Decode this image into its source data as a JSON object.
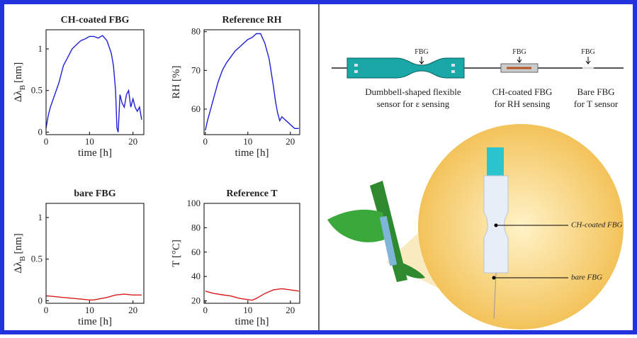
{
  "chart_data": [
    {
      "type": "line",
      "title": "CH-coated FBG",
      "x_label": "time [h]",
      "y_label": "Δλ",
      "y_label_sub": "B",
      "y_label_unit": "[nm]",
      "color": "#1f1fd6",
      "x": [
        0,
        0.5,
        1,
        2,
        3,
        4,
        5,
        6,
        7,
        8,
        9,
        10,
        11,
        12,
        13,
        14,
        15,
        15.5,
        16,
        16.3,
        16.6,
        17,
        17.5,
        18,
        18.5,
        19,
        19.5,
        20,
        20.5,
        21,
        21.5,
        22
      ],
      "values": [
        0.05,
        0.2,
        0.3,
        0.45,
        0.6,
        0.8,
        0.9,
        1.0,
        1.05,
        1.1,
        1.12,
        1.15,
        1.15,
        1.13,
        1.16,
        1.1,
        0.95,
        0.8,
        0.5,
        0.05,
        0.0,
        0.45,
        0.35,
        0.3,
        0.45,
        0.5,
        0.3,
        0.4,
        0.3,
        0.25,
        0.3,
        0.15
      ],
      "xlim": [
        0,
        22.5
      ],
      "xticks": [
        0,
        10,
        20
      ],
      "ylim": [
        -0.03,
        1.23
      ],
      "yticks": [
        0,
        0.5,
        1
      ]
    },
    {
      "type": "line",
      "title": "Reference RH",
      "x_label": "time [h]",
      "y_label": "RH [%]",
      "color": "#1f1fd6",
      "x": [
        0,
        0.5,
        1,
        2,
        3,
        4,
        5,
        6,
        7,
        8,
        9,
        10,
        11,
        12,
        13,
        14,
        15,
        16,
        16.5,
        17,
        17.5,
        18,
        19,
        20,
        21,
        22
      ],
      "values": [
        54.5,
        57,
        59,
        63,
        67,
        70,
        72,
        73.5,
        75,
        76,
        77,
        78,
        78.5,
        79.5,
        79.5,
        77,
        73,
        66,
        62,
        59,
        57,
        58,
        57,
        56,
        55,
        55
      ],
      "xlim": [
        -0.3,
        22.2
      ],
      "xticks": [
        0,
        10,
        20
      ],
      "ylim": [
        53.4,
        80.5
      ],
      "yticks": [
        60,
        70,
        80
      ]
    },
    {
      "type": "line",
      "title": "bare FBG",
      "x_label": "time [h]",
      "y_label": "Δλ",
      "y_label_sub": "B",
      "y_label_unit": "[nm]",
      "color": "#d91a1a",
      "x": [
        0,
        2,
        4,
        6,
        8,
        10,
        11,
        12,
        14,
        16,
        18,
        20,
        22
      ],
      "values": [
        0.06,
        0.05,
        0.04,
        0.03,
        0.02,
        0.01,
        0.01,
        0.02,
        0.04,
        0.07,
        0.08,
        0.07,
        0.07
      ],
      "xlim": [
        0,
        22.5
      ],
      "xticks": [
        0,
        10,
        20
      ],
      "ylim": [
        -0.03,
        1.17
      ],
      "yticks": [
        0,
        0.5,
        1
      ]
    },
    {
      "type": "line",
      "title": "Reference T",
      "x_label": "time [h]",
      "y_label": "T [°C]",
      "color": "#d91a1a",
      "x": [
        0,
        2,
        4,
        6,
        8,
        10,
        11,
        12,
        14,
        16,
        18,
        20,
        22
      ],
      "values": [
        28,
        26,
        25,
        24,
        22,
        21,
        20.5,
        22,
        26,
        29,
        30,
        29,
        28
      ],
      "xlim": [
        -0.3,
        22.2
      ],
      "xticks": [
        0,
        10,
        20
      ],
      "ylim": [
        18,
        100
      ],
      "yticks": [
        20,
        40,
        60,
        80,
        100
      ]
    }
  ],
  "diagram": {
    "fbg_labels": [
      "FBG",
      "FBG",
      "FBG"
    ],
    "captions": [
      [
        "Dumbbell-shaped flexible",
        "sensor for ε sensing"
      ],
      [
        "CH-coated FBG",
        "for RH sensing"
      ],
      [
        "Bare FBG",
        "for T sensor"
      ]
    ],
    "callouts": [
      "CH-coated FBG",
      "bare FBG"
    ]
  }
}
